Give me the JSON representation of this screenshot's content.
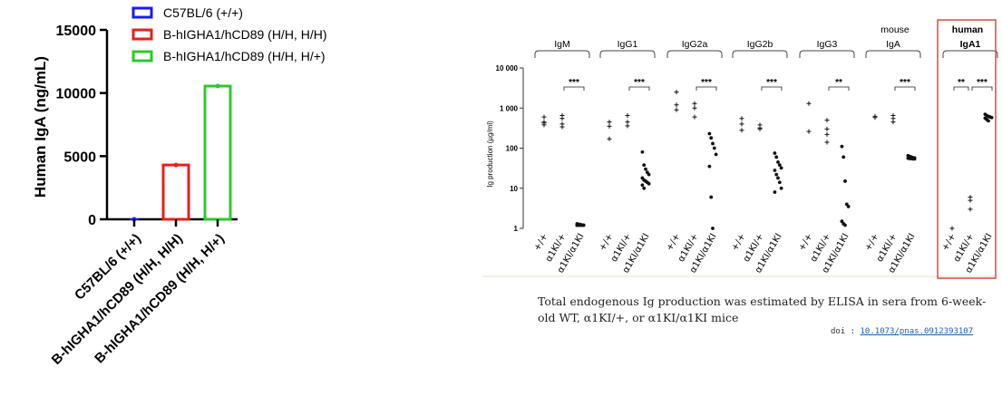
{
  "left_chart": {
    "type": "bar",
    "ylabel": "Human IgA (ng/mL)",
    "ylim": [
      0,
      15000
    ],
    "yticks": [
      "0",
      "5000",
      "10000",
      "15000"
    ],
    "ytick_values": [
      0,
      5000,
      10000,
      15000
    ],
    "categories": [
      "C57BL/6 (+/+)",
      "B-hIGHA1/hCD89 (H/H, H/H)",
      "B-hIGHA1/hCD89 (H/H, H/+)"
    ],
    "values": [
      0,
      4300,
      10550
    ],
    "colors": [
      "#1a1aff",
      "#e8201c",
      "#2ec92e"
    ],
    "legend": [
      {
        "label": "C57BL/6 (+/+)",
        "color": "#1a1aff"
      },
      {
        "label": "B-hIGHA1/hCD89 (H/H, H/H)",
        "color": "#e8201c"
      },
      {
        "label": "B-hIGHA1/hCD89 (H/H, H/+)",
        "color": "#2ec92e"
      }
    ]
  },
  "right_chart": {
    "type": "scatter",
    "ylabel": "Ig production (µg/ml)",
    "yscale": "log",
    "yticks": [
      "1",
      "10",
      "100",
      "1 000",
      "10 000"
    ],
    "ytick_values": [
      1,
      10,
      100,
      1000,
      10000
    ],
    "genotypes": [
      "+/+",
      "α1KI/+",
      "α1KI/α1KI"
    ],
    "mouse_label": "mouse",
    "human_label": "human",
    "groups": [
      {
        "name": "IgM",
        "sig": "***",
        "wt": [
          600,
          450,
          420,
          380
        ],
        "het": [
          650,
          550,
          400,
          340
        ],
        "hom": [
          1.3,
          1.25,
          1.25,
          1.2,
          1.2,
          1.2,
          1.2,
          1.2,
          1.2,
          1.2,
          1.2,
          1.2
        ]
      },
      {
        "name": "IgG1",
        "sig": "***",
        "wt": [
          450,
          350,
          170
        ],
        "het": [
          650,
          450,
          360
        ],
        "hom": [
          80,
          38,
          30,
          25,
          22,
          18,
          16,
          15,
          14,
          13,
          12,
          10
        ]
      },
      {
        "name": "IgG2a",
        "sig": "***",
        "wt": [
          2500,
          1200,
          900
        ],
        "het": [
          1300,
          1000,
          600
        ],
        "hom": [
          230,
          180,
          130,
          100,
          70,
          35,
          6,
          1
        ]
      },
      {
        "name": "IgG2b",
        "sig": "***",
        "wt": [
          550,
          400,
          280
        ],
        "het": [
          380,
          320,
          300
        ],
        "hom": [
          75,
          60,
          45,
          38,
          32,
          28,
          22,
          18,
          14,
          10,
          8
        ]
      },
      {
        "name": "IgG3",
        "sig": "**",
        "wt": [
          1300,
          260
        ],
        "het": [
          500,
          300,
          220,
          140
        ],
        "hom": [
          110,
          60,
          15,
          4,
          3.5,
          1.5,
          1.3,
          1.2
        ]
      },
      {
        "name": "IgA",
        "sig": "***",
        "wt": [
          620,
          580
        ],
        "het": [
          650,
          550,
          450
        ],
        "hom": [
          65,
          62,
          60,
          58,
          57,
          56,
          55,
          55,
          54,
          54
        ]
      },
      {
        "name": "IgA1",
        "sig": "** ***",
        "wt": [
          1,
          1
        ],
        "het": [
          6,
          5,
          3
        ],
        "hom": [
          700,
          650,
          620,
          600,
          580,
          560,
          520,
          480
        ]
      }
    ]
  },
  "caption": "Total endogenous Ig production was estimated by ELISA in sera from 6-week-old WT, α1KI/+, or α1KI/α1KI mice",
  "doi_label": "doi :",
  "doi_link": "10.1073/pnas.0912393107"
}
